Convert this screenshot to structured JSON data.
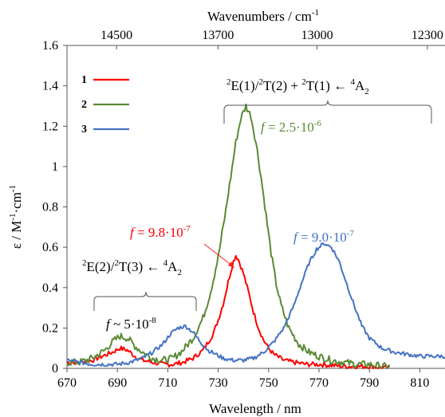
{
  "chart_data": {
    "type": "line",
    "xlabel": "Wavelength / nm",
    "ylabel": "ε / M⁻¹·cm⁻¹",
    "top_axis_label": "Wavenumbers / cm⁻¹",
    "xlim": [
      670,
      820
    ],
    "ylim": [
      0,
      1.6
    ],
    "x_ticks": [
      670,
      690,
      710,
      730,
      750,
      770,
      790,
      810
    ],
    "y_ticks": [
      0,
      0.2,
      0.4,
      0.6,
      0.8,
      1,
      1.2,
      1.4,
      1.6
    ],
    "y_tick_labels": [
      "0",
      "0.2",
      "0.4",
      "0.6",
      "0.8",
      "1",
      "1.2",
      "1.4",
      "1.6"
    ],
    "top_ticks": [
      {
        "label": "14500",
        "wavenumber": 14500
      },
      {
        "label": "13700",
        "wavenumber": 13700
      },
      {
        "label": "13000",
        "wavenumber": 13000
      },
      {
        "label": "12300",
        "wavenumber": 12300
      }
    ],
    "grid": false,
    "legend_position": "top-left",
    "series": [
      {
        "name": "1",
        "color": "#ff0000",
        "x": [
          670,
          675,
          680,
          684,
          688,
          691,
          694,
          697,
          700,
          704,
          708,
          712,
          716,
          720,
          724,
          728,
          730,
          732,
          734,
          736,
          737,
          738,
          740,
          742,
          744,
          746,
          748,
          750,
          752,
          756,
          760,
          765,
          770,
          780,
          790,
          798
        ],
        "y": [
          0.03,
          0.03,
          0.04,
          0.06,
          0.08,
          0.1,
          0.09,
          0.06,
          0.04,
          0.03,
          0.02,
          0.02,
          0.03,
          0.05,
          0.09,
          0.17,
          0.24,
          0.32,
          0.43,
          0.53,
          0.56,
          0.54,
          0.47,
          0.38,
          0.28,
          0.2,
          0.14,
          0.1,
          0.07,
          0.04,
          0.03,
          0.02,
          0.02,
          0.01,
          0.01,
          0.0
        ]
      },
      {
        "name": "2",
        "color": "#5a8a34",
        "x": [
          670,
          675,
          680,
          685,
          688,
          691,
          694,
          697,
          700,
          704,
          708,
          712,
          716,
          720,
          724,
          727,
          730,
          733,
          735,
          737,
          739,
          741,
          743,
          745,
          747,
          749,
          751,
          753,
          755,
          758,
          762,
          766,
          770,
          775,
          780,
          785,
          790,
          795,
          798
        ],
        "y": [
          0.03,
          0.03,
          0.05,
          0.09,
          0.13,
          0.16,
          0.15,
          0.11,
          0.08,
          0.05,
          0.04,
          0.05,
          0.09,
          0.15,
          0.25,
          0.38,
          0.55,
          0.78,
          0.95,
          1.12,
          1.24,
          1.3,
          1.25,
          1.12,
          0.95,
          0.76,
          0.57,
          0.42,
          0.31,
          0.2,
          0.12,
          0.08,
          0.06,
          0.04,
          0.03,
          0.02,
          0.02,
          0.01,
          0.01
        ]
      },
      {
        "name": "3",
        "color": "#4472c4",
        "x": [
          670,
          675,
          680,
          685,
          690,
          695,
          700,
          704,
          708,
          711,
          714,
          717,
          720,
          723,
          726,
          729,
          732,
          736,
          740,
          744,
          748,
          752,
          756,
          760,
          763,
          766,
          769,
          772,
          775,
          778,
          781,
          784,
          787,
          790,
          795,
          800,
          805,
          810,
          815,
          820
        ],
        "y": [
          0.04,
          0.03,
          0.02,
          0.02,
          0.02,
          0.03,
          0.05,
          0.08,
          0.12,
          0.17,
          0.2,
          0.21,
          0.18,
          0.13,
          0.09,
          0.07,
          0.05,
          0.04,
          0.04,
          0.05,
          0.08,
          0.13,
          0.2,
          0.31,
          0.42,
          0.52,
          0.59,
          0.62,
          0.6,
          0.53,
          0.42,
          0.31,
          0.21,
          0.15,
          0.1,
          0.08,
          0.07,
          0.06,
          0.06,
          0.06
        ]
      }
    ],
    "annotations": [
      {
        "text": "²E(1)/²T(2) + ²T(1) ← ⁴A₂",
        "color": "#000000"
      },
      {
        "text": "²E(2)/²T(3) ← ⁴A₂",
        "color": "#000000"
      },
      {
        "text": "f = 2.5·10⁻⁶",
        "color": "#5a8a34"
      },
      {
        "text": "f = 9.8·10⁻⁷",
        "color": "#ff0000"
      },
      {
        "text": "f = 9.0·10⁻⁷",
        "color": "#4472c4"
      },
      {
        "text": "f ~ 5·10⁻⁸",
        "color": "#000000"
      }
    ]
  }
}
